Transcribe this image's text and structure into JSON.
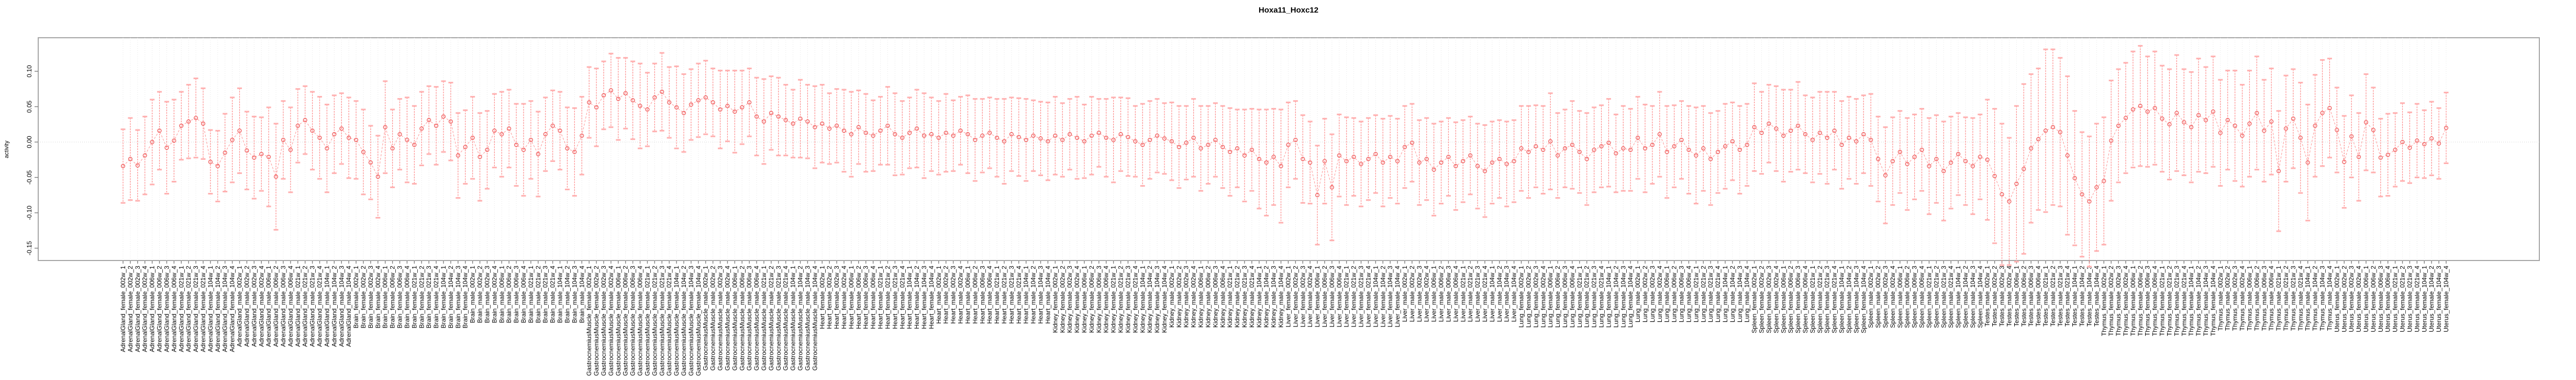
{
  "figure": {
    "title": "Hoxa11_Hoxc12"
  },
  "chart_data": {
    "type": "line",
    "subtype": "means-with-error-bars",
    "title": "Hoxa11_Hoxc12",
    "xlabel": "",
    "ylabel": "activity",
    "y_ticks": [
      "0.10",
      "0.05",
      "0.00",
      "-0.05",
      "-0.10",
      "-0.15"
    ],
    "y_tick_values": [
      0.1,
      0.05,
      0.0,
      -0.05,
      -0.1,
      -0.15
    ],
    "ylim": [
      -0.175,
      0.148
    ],
    "grid": {
      "vertical_dotted_per_sample": true,
      "horizontal_dotted_at_zero": true
    },
    "legend": "none",
    "point_style": "open-circle",
    "connector_style": "dashed",
    "error_bars": true,
    "colors": {
      "series": "#ff8585",
      "cap": "#ffb0b0",
      "marker": "#f06565",
      "connector": "#ff9c9c",
      "grid": "#e3e3e3",
      "zero_line": "#c9c9c9",
      "border": "#a6a6a6",
      "tick": "#7d7d7d",
      "text": "#000000"
    },
    "ages": [
      "002w",
      "006w",
      "021w",
      "104w"
    ],
    "replicates": [
      "1",
      "2",
      "3",
      "4"
    ],
    "label_format": "{tissue}_{sex}_{age}_{rep}",
    "blocks": [
      {
        "tissue": "AdrenalGland",
        "sex": "female",
        "mean": [
          -0.034,
          -0.024,
          -0.033,
          -0.019,
          0.0,
          0.016,
          -0.008,
          0.002,
          0.023,
          0.029,
          0.034,
          0.026,
          -0.028,
          -0.034,
          -0.015,
          0.003
        ],
        "err": [
          0.052,
          0.058,
          0.05,
          0.055,
          0.06,
          0.055,
          0.065,
          0.058,
          0.048,
          0.052,
          0.056,
          0.05,
          0.045,
          0.05,
          0.055,
          0.06
        ]
      },
      {
        "tissue": "AdrenalGland",
        "sex": "male",
        "mean": [
          0.016,
          -0.012,
          -0.022,
          -0.017,
          -0.021,
          -0.049,
          0.003,
          -0.011,
          0.023,
          0.031,
          0.016,
          0.006,
          -0.009,
          0.011,
          0.019,
          0.006
        ],
        "err": [
          0.06,
          0.055,
          0.058,
          0.052,
          0.07,
          0.075,
          0.055,
          0.06,
          0.052,
          0.048,
          0.055,
          0.058,
          0.062,
          0.055,
          0.05,
          0.057
        ]
      },
      {
        "tissue": "Brain",
        "sex": "female",
        "mean": [
          0.003,
          -0.014,
          -0.029,
          -0.049,
          0.021,
          -0.009,
          0.011,
          0.003,
          -0.004,
          0.019,
          0.031,
          0.023,
          0.036,
          0.029,
          -0.019,
          -0.007
        ],
        "err": [
          0.055,
          0.06,
          0.052,
          0.058,
          0.065,
          0.055,
          0.05,
          0.06,
          0.055,
          0.052,
          0.048,
          0.055,
          0.05,
          0.055,
          0.06,
          0.052
        ]
      },
      {
        "tissue": "Brain",
        "sex": "male",
        "mean": [
          0.006,
          -0.021,
          -0.011,
          0.016,
          0.011,
          0.019,
          -0.004,
          -0.011,
          0.003,
          -0.017,
          0.011,
          0.023,
          0.016,
          -0.009,
          -0.014,
          0.009
        ],
        "err": [
          0.058,
          0.062,
          0.055,
          0.052,
          0.06,
          0.055,
          0.058,
          0.065,
          0.055,
          0.06,
          0.052,
          0.05,
          0.055,
          0.058,
          0.062,
          0.055
        ]
      },
      {
        "tissue": "GastrocnemiusMuscle",
        "sex": "female",
        "mean": [
          0.056,
          0.049,
          0.066,
          0.073,
          0.061,
          0.069,
          0.059,
          0.051,
          0.046,
          0.063,
          0.071,
          0.056,
          0.049,
          0.041,
          0.053,
          0.059
        ],
        "err": [
          0.05,
          0.055,
          0.048,
          0.052,
          0.058,
          0.05,
          0.055,
          0.06,
          0.052,
          0.048,
          0.055,
          0.05,
          0.058,
          0.055,
          0.05,
          0.052
        ]
      },
      {
        "tissue": "GastrocnemiusMuscle",
        "sex": "male",
        "mean": [
          0.063,
          0.056,
          0.046,
          0.051,
          0.043,
          0.049,
          0.056,
          0.036,
          0.029,
          0.041,
          0.036,
          0.031,
          0.026,
          0.033,
          0.029,
          0.021
        ],
        "err": [
          0.052,
          0.048,
          0.055,
          0.05,
          0.058,
          0.052,
          0.048,
          0.055,
          0.06,
          0.052,
          0.055,
          0.05,
          0.048,
          0.055,
          0.052,
          0.058
        ]
      },
      {
        "tissue": "Heart",
        "sex": "female",
        "mean": [
          0.026,
          0.019,
          0.023,
          0.016,
          0.011,
          0.021,
          0.013,
          0.009,
          0.016,
          0.023,
          0.011,
          0.006,
          0.013,
          0.019,
          0.009,
          0.011
        ],
        "err": [
          0.055,
          0.05,
          0.052,
          0.058,
          0.06,
          0.052,
          0.055,
          0.05,
          0.048,
          0.055,
          0.058,
          0.052,
          0.05,
          0.055,
          0.06,
          0.052
        ]
      },
      {
        "tissue": "Heart",
        "sex": "male",
        "mean": [
          0.006,
          0.013,
          0.009,
          0.016,
          0.011,
          0.003,
          0.009,
          0.013,
          0.006,
          0.001,
          0.011,
          0.007,
          0.003,
          0.009,
          0.005,
          0.001
        ],
        "err": [
          0.052,
          0.055,
          0.05,
          0.048,
          0.055,
          0.058,
          0.052,
          0.05,
          0.055,
          0.06,
          0.052,
          0.055,
          0.058,
          0.05,
          0.052,
          0.055
        ]
      },
      {
        "tissue": "Kidney",
        "sex": "female",
        "mean": [
          0.009,
          0.003,
          0.011,
          0.006,
          0.001,
          0.009,
          0.013,
          0.006,
          0.003,
          0.011,
          0.007,
          0.001,
          -0.004,
          0.003,
          0.009,
          0.005
        ],
        "err": [
          0.055,
          0.052,
          0.05,
          0.058,
          0.052,
          0.055,
          0.048,
          0.055,
          0.06,
          0.052,
          0.055,
          0.05,
          0.058,
          0.055,
          0.052,
          0.05
        ]
      },
      {
        "tissue": "Kidney",
        "sex": "male",
        "mean": [
          0.001,
          -0.007,
          -0.001,
          0.006,
          -0.009,
          -0.004,
          0.003,
          -0.007,
          -0.014,
          -0.009,
          -0.019,
          -0.011,
          -0.024,
          -0.029,
          -0.021,
          -0.034
        ],
        "err": [
          0.055,
          0.058,
          0.052,
          0.055,
          0.06,
          0.055,
          0.052,
          0.058,
          0.062,
          0.055,
          0.065,
          0.058,
          0.07,
          0.075,
          0.068,
          0.08
        ]
      },
      {
        "tissue": "Liver",
        "sex": "female",
        "mean": [
          -0.004,
          0.003,
          -0.024,
          -0.029,
          -0.075,
          -0.027,
          -0.064,
          -0.019,
          -0.027,
          -0.021,
          -0.031,
          -0.024,
          -0.017,
          -0.029,
          -0.021,
          -0.027
        ],
        "err": [
          0.06,
          0.055,
          0.062,
          0.058,
          0.07,
          0.06,
          0.075,
          0.058,
          0.062,
          0.055,
          0.06,
          0.058,
          0.055,
          0.062,
          0.058,
          0.06
        ]
      },
      {
        "tissue": "Liver",
        "sex": "male",
        "mean": [
          -0.007,
          -0.001,
          -0.029,
          -0.024,
          -0.039,
          -0.029,
          -0.021,
          -0.034,
          -0.027,
          -0.019,
          -0.034,
          -0.041,
          -0.029,
          -0.024,
          -0.031,
          -0.027
        ],
        "err": [
          0.058,
          0.055,
          0.06,
          0.058,
          0.065,
          0.058,
          0.055,
          0.062,
          0.058,
          0.055,
          0.06,
          0.065,
          0.058,
          0.055,
          0.06,
          0.058
        ]
      },
      {
        "tissue": "Lung",
        "sex": "female",
        "mean": [
          -0.009,
          -0.014,
          -0.006,
          -0.011,
          0.001,
          -0.019,
          -0.009,
          -0.004,
          -0.014,
          -0.024,
          -0.011,
          -0.006,
          -0.001,
          -0.016,
          -0.009,
          -0.011
        ],
        "err": [
          0.06,
          0.065,
          0.058,
          0.062,
          0.068,
          0.06,
          0.055,
          0.062,
          0.058,
          0.065,
          0.06,
          0.058,
          0.062,
          0.055,
          0.06,
          0.058
        ]
      },
      {
        "tissue": "Lung",
        "sex": "male",
        "mean": [
          0.006,
          -0.009,
          -0.004,
          0.011,
          -0.014,
          -0.006,
          0.003,
          -0.011,
          -0.019,
          -0.009,
          -0.024,
          -0.014,
          -0.006,
          0.001,
          -0.011,
          -0.004
        ],
        "err": [
          0.058,
          0.062,
          0.055,
          0.06,
          0.065,
          0.058,
          0.055,
          0.062,
          0.068,
          0.06,
          0.065,
          0.058,
          0.06,
          0.055,
          0.062,
          0.058
        ]
      },
      {
        "tissue": "Spleen",
        "sex": "female",
        "mean": [
          0.021,
          0.013,
          0.026,
          0.019,
          0.009,
          0.016,
          0.023,
          0.011,
          0.003,
          0.013,
          0.006,
          0.016,
          -0.004,
          0.006,
          0.001,
          0.011
        ],
        "err": [
          0.062,
          0.058,
          0.055,
          0.06,
          0.065,
          0.058,
          0.062,
          0.055,
          0.06,
          0.058,
          0.065,
          0.055,
          0.062,
          0.058,
          0.06,
          0.055
        ]
      },
      {
        "tissue": "Spleen",
        "sex": "male",
        "mean": [
          0.003,
          -0.024,
          -0.047,
          -0.027,
          -0.014,
          -0.031,
          -0.021,
          -0.011,
          -0.034,
          -0.024,
          -0.041,
          -0.029,
          -0.017,
          -0.027,
          -0.034,
          -0.021
        ],
        "err": [
          0.065,
          0.06,
          0.068,
          0.062,
          0.058,
          0.065,
          0.06,
          0.058,
          0.068,
          0.062,
          0.07,
          0.065,
          0.058,
          0.062,
          0.068,
          0.06
        ]
      },
      {
        "tissue": "Testes",
        "sex": "male",
        "mean": [
          -0.025,
          -0.048,
          -0.074,
          -0.084,
          -0.059,
          -0.038,
          -0.009,
          0.004,
          0.016,
          0.021,
          0.014,
          -0.019,
          -0.051,
          -0.074,
          -0.084,
          -0.064
        ],
        "err": [
          0.085,
          0.095,
          0.1,
          0.09,
          0.11,
          0.12,
          0.105,
          0.1,
          0.115,
          0.11,
          0.105,
          0.112,
          0.095,
          0.088,
          0.092,
          0.09
        ]
      },
      {
        "tissue": "Thymus",
        "sex": "female",
        "mean": [
          -0.055,
          0.002,
          0.023,
          0.034,
          0.046,
          0.051,
          0.043,
          0.048,
          0.033,
          0.025,
          0.041,
          0.028,
          0.021,
          0.038,
          0.031,
          0.043
        ],
        "err": [
          0.09,
          0.085,
          0.08,
          0.078,
          0.082,
          0.085,
          0.078,
          0.08,
          0.075,
          0.078,
          0.082,
          0.075,
          0.078,
          0.08,
          0.075,
          0.078
        ]
      },
      {
        "tissue": "Thymus",
        "sex": "male",
        "mean": [
          0.013,
          0.031,
          0.023,
          0.009,
          0.026,
          0.041,
          0.016,
          0.029,
          -0.041,
          0.019,
          0.033,
          0.006,
          -0.029,
          0.023,
          0.041,
          0.048
        ],
        "err": [
          0.075,
          0.07,
          0.078,
          0.072,
          0.075,
          0.08,
          0.072,
          0.075,
          0.085,
          0.075,
          0.07,
          0.078,
          0.082,
          0.072,
          0.075,
          0.07
        ]
      },
      {
        "tissue": "Uterus",
        "sex": "female",
        "mean": [
          0.017,
          -0.028,
          0.008,
          -0.021,
          0.028,
          0.017,
          -0.022,
          -0.018,
          -0.011,
          0.0,
          -0.008,
          0.002,
          -0.003,
          0.005,
          -0.002,
          0.02
        ],
        "err": [
          0.06,
          0.065,
          0.058,
          0.062,
          0.068,
          0.06,
          0.055,
          0.058,
          0.052,
          0.055,
          0.05,
          0.052,
          0.048,
          0.052,
          0.05,
          0.05
        ]
      }
    ]
  }
}
